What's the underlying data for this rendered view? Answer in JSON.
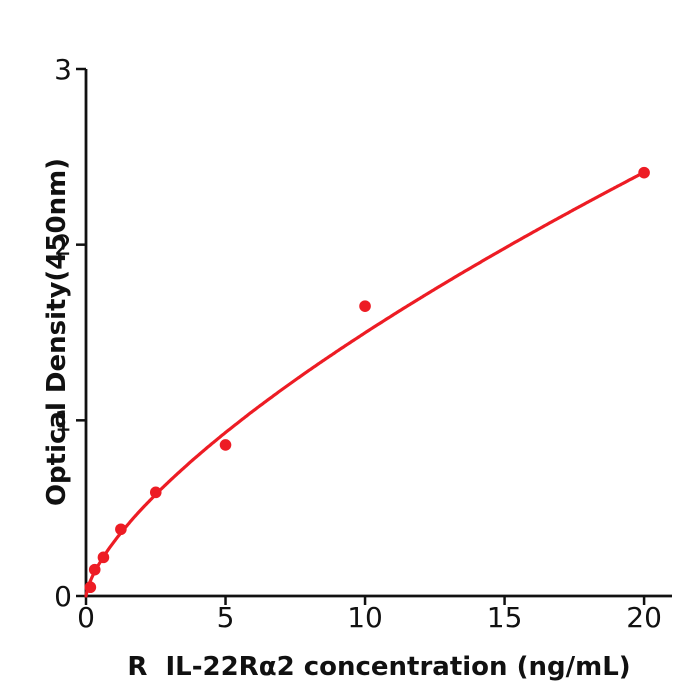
{
  "figure": {
    "background": "#ffffff"
  },
  "chart_data": {
    "type": "scatter",
    "title": "",
    "xlabel": "R  IL-22Rα2 concentration (ng/mL)",
    "ylabel": "Optical Density(450nm)",
    "x": [
      0.156,
      0.313,
      0.625,
      1.25,
      2.5,
      5,
      10,
      20
    ],
    "y": [
      0.05,
      0.15,
      0.22,
      0.38,
      0.59,
      0.86,
      1.65,
      2.41
    ],
    "fit_curve": {
      "type": "power",
      "a": 0.308,
      "b": 0.687,
      "x_start": 0,
      "x_end": 20
    },
    "xlim": [
      0,
      21
    ],
    "ylim": [
      0,
      3
    ],
    "xticks": [
      0,
      5,
      10,
      15,
      20
    ],
    "yticks": [
      0,
      1,
      2,
      3
    ],
    "grid": false,
    "legend": "none",
    "point_color": "#ed1c24",
    "line_color": "#ed1c24",
    "axis_color": "#111111"
  }
}
